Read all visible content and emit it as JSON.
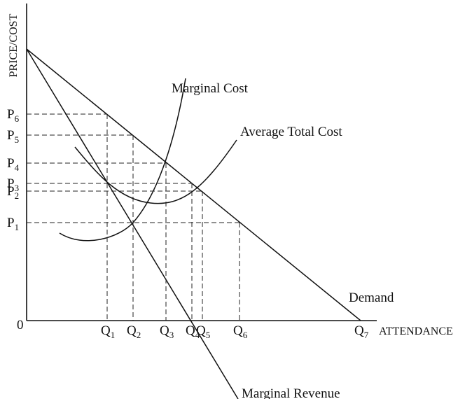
{
  "diagram": {
    "y_axis_label": "PRICE/COST",
    "x_axis_label": "ATTENDANCE",
    "origin_label": "0",
    "price_labels": [
      {
        "base": "P",
        "sub": "6"
      },
      {
        "base": "P",
        "sub": "5"
      },
      {
        "base": "P",
        "sub": "4"
      },
      {
        "base": "P",
        "sub": "3"
      },
      {
        "base": "P",
        "sub": "2"
      },
      {
        "base": "P",
        "sub": "1"
      }
    ],
    "quantity_labels": [
      {
        "base": "Q",
        "sub": "1"
      },
      {
        "base": "Q",
        "sub": "2"
      },
      {
        "base": "Q",
        "sub": "3"
      },
      {
        "base": "Q",
        "sub": "4"
      },
      {
        "base": "Q",
        "sub": "5"
      },
      {
        "base": "Q",
        "sub": "6"
      },
      {
        "base": "Q",
        "sub": "7"
      }
    ],
    "curves": {
      "marginal_cost": "Marginal Cost",
      "average_total_cost": "Average Total Cost",
      "demand": "Demand",
      "marginal_revenue": "Marginal Revenue"
    }
  }
}
